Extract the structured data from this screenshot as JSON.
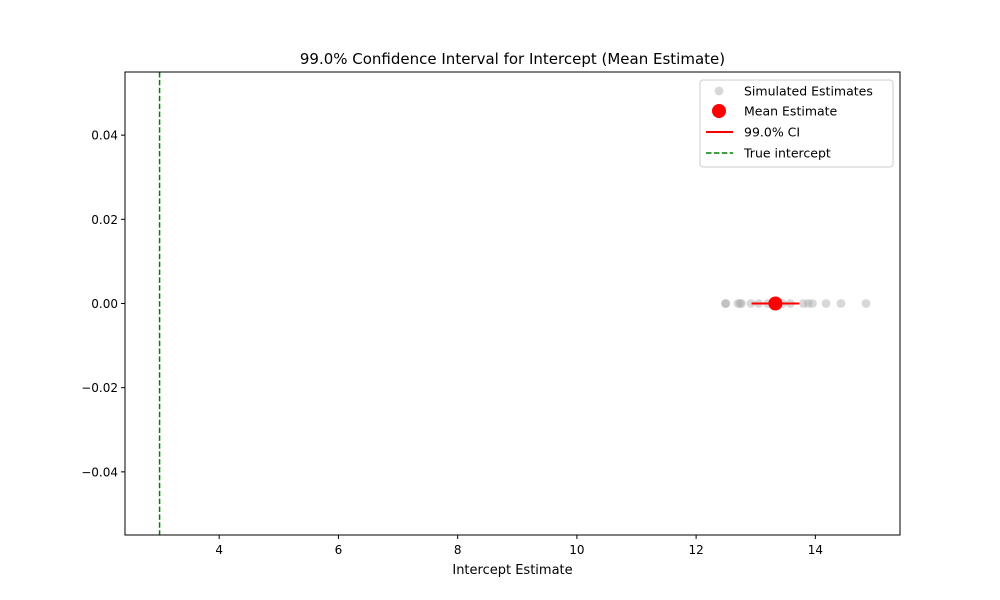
{
  "chart_data": {
    "type": "scatter",
    "title": "99.0% Confidence Interval for Intercept (Mean Estimate)",
    "xlabel": "Intercept Estimate",
    "ylabel": "",
    "xlim": [
      2.42,
      15.42
    ],
    "ylim": [
      -0.055,
      0.055
    ],
    "x_ticks": [
      4,
      6,
      8,
      10,
      12,
      14
    ],
    "x_tick_labels": [
      "4",
      "6",
      "8",
      "10",
      "12",
      "14"
    ],
    "y_ticks": [
      0.04,
      0.02,
      0.0,
      -0.02,
      -0.04
    ],
    "y_tick_labels": [
      "0.04",
      "0.02",
      "0.00",
      "−0.02",
      "−0.04"
    ],
    "grid": false,
    "legend_position": "top-right",
    "series": [
      {
        "name": "Simulated Estimates",
        "kind": "scatter",
        "color": "#a9a9a9",
        "x": [
          12.49,
          12.5,
          12.7,
          12.74,
          12.76,
          12.92,
          13.05,
          13.2,
          13.3,
          13.45,
          13.58,
          13.8,
          13.88,
          13.95,
          14.18,
          14.43,
          14.85
        ],
        "y": [
          0,
          0,
          0,
          0,
          0,
          0,
          0,
          0,
          0,
          0,
          0,
          0,
          0,
          0,
          0,
          0,
          0
        ]
      },
      {
        "name": "Mean Estimate",
        "kind": "point",
        "color": "#ff0000",
        "x": [
          13.33
        ],
        "y": [
          0
        ]
      },
      {
        "name": "99.0% CI",
        "kind": "interval",
        "color": "#ff0000",
        "x": [
          12.93,
          13.73
        ],
        "y": [
          0,
          0
        ]
      },
      {
        "name": "True intercept",
        "kind": "vline",
        "color": "#008000",
        "x": [
          3
        ]
      }
    ]
  }
}
